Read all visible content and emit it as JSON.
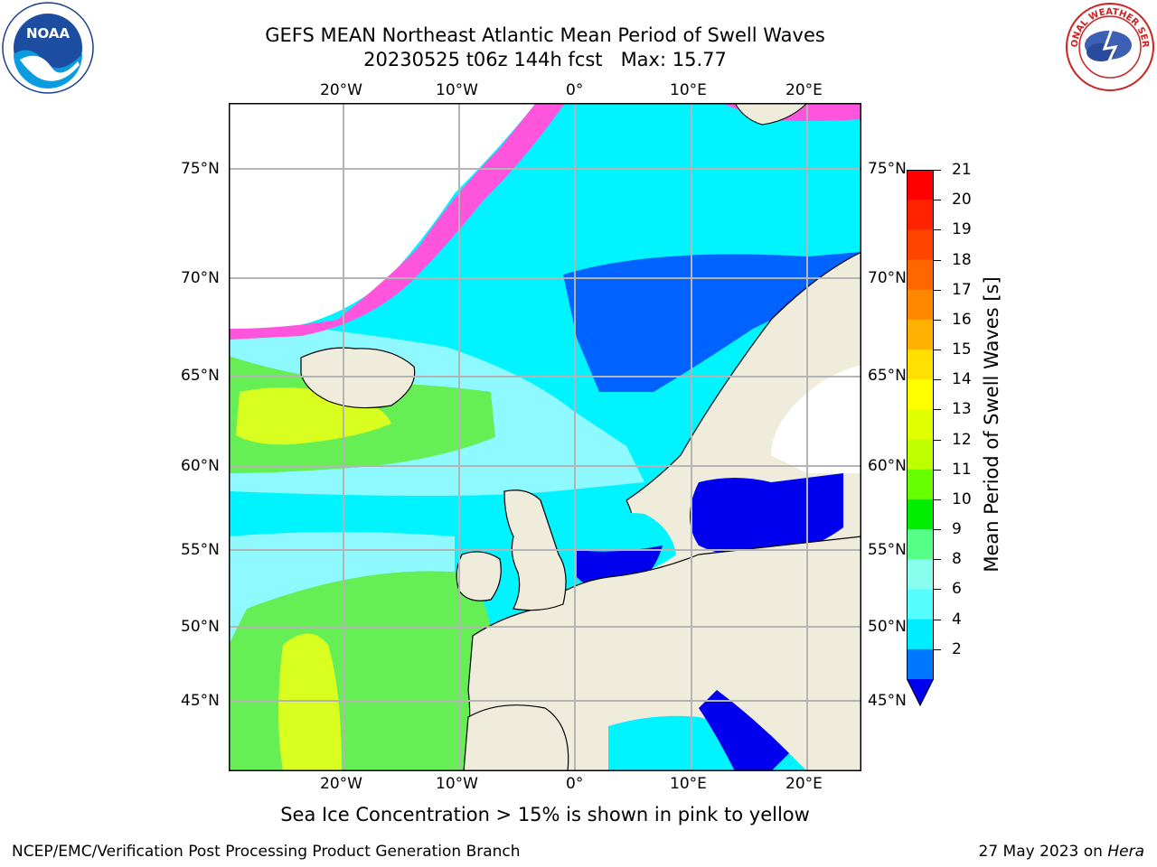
{
  "title_line1": "GEFS MEAN Northeast Atlantic Mean Period of Swell Waves",
  "title_line2": "20230525 t06z 144h fcst   Max: 15.77",
  "longitude_ticks_top": [
    "20°W",
    "10°W",
    "0°",
    "10°E",
    "20°E"
  ],
  "longitude_ticks_bottom": [
    "20°W",
    "10°W",
    "0°",
    "10°E",
    "20°E"
  ],
  "latitude_ticks_left": [
    "75°N",
    "70°N",
    "65°N",
    "60°N",
    "55°N",
    "50°N",
    "45°N"
  ],
  "latitude_ticks_right": [
    "75°N",
    "70°N",
    "65°N",
    "60°N",
    "55°N",
    "50°N",
    "45°N"
  ],
  "colorbar": {
    "label": "Mean Period of Swell Waves [s]",
    "ticks": [
      "21",
      "20",
      "19",
      "18",
      "17",
      "16",
      "15",
      "14",
      "13",
      "12",
      "11",
      "10",
      "9",
      "8",
      "6",
      "4",
      "2"
    ],
    "colors": [
      "#ff0000",
      "#ff2200",
      "#ff4400",
      "#ff6600",
      "#ff8800",
      "#ffb000",
      "#ffe000",
      "#ffff00",
      "#e0ff00",
      "#c0ff00",
      "#66ff00",
      "#00ee00",
      "#55ff88",
      "#88ffee",
      "#55ffff",
      "#00eeff",
      "#0077ff"
    ],
    "extend_color": "#0000ee"
  },
  "caption": "Sea Ice Concentration > 15% is shown in pink to yellow",
  "footer_left": "NCEP/EMC/Verification Post Processing Product Generation Branch",
  "footer_right_date": "27 May 2023 on ",
  "footer_right_machine": "Hera",
  "logos": {
    "left": "NOAA",
    "right": "NATIONAL WEATHER SERVICE"
  },
  "colors": {
    "land": "#efecdc",
    "ocean_cyan": "#00f4ff",
    "ocean_light": "#8efaff",
    "ocean_blue": "#0062ff",
    "ocean_deep": "#0000ee",
    "swell_green": "#66ee55",
    "swell_yellow": "#d8ff20",
    "ice_pink": "#ff55dd",
    "grid": "#b4b4b4"
  }
}
